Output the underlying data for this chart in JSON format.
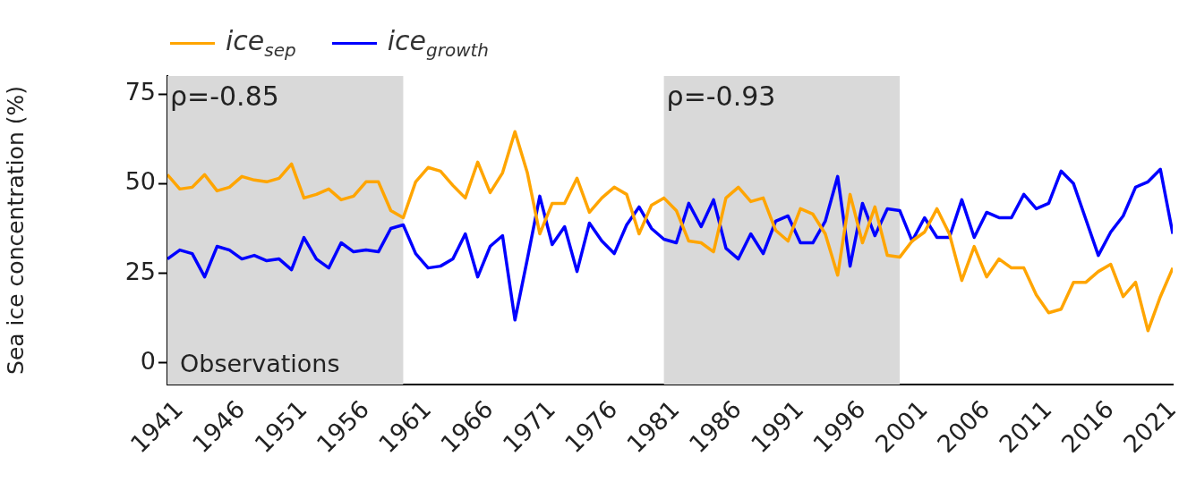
{
  "chart_data": {
    "type": "line",
    "ylabel": "Sea ice concentration (%)",
    "x": [
      1940,
      1941,
      1942,
      1943,
      1944,
      1945,
      1946,
      1947,
      1948,
      1949,
      1950,
      1951,
      1952,
      1953,
      1954,
      1955,
      1956,
      1957,
      1958,
      1959,
      1960,
      1961,
      1962,
      1963,
      1964,
      1965,
      1966,
      1967,
      1968,
      1969,
      1970,
      1971,
      1972,
      1973,
      1974,
      1975,
      1976,
      1977,
      1978,
      1979,
      1980,
      1981,
      1982,
      1983,
      1984,
      1985,
      1986,
      1987,
      1988,
      1989,
      1990,
      1991,
      1992,
      1993,
      1994,
      1995,
      1996,
      1997,
      1998,
      1999,
      2000,
      2001,
      2002,
      2003,
      2004,
      2005,
      2006,
      2007,
      2008,
      2009,
      2010,
      2011,
      2012,
      2013,
      2014,
      2015,
      2016,
      2017,
      2018,
      2019,
      2020,
      2021
    ],
    "series": [
      {
        "name": "ice$_{sep}$",
        "color": "#ffa500",
        "values": [
          52.5,
          48.5,
          49,
          52.5,
          48,
          49,
          52,
          51,
          50.5,
          51.5,
          55.5,
          46,
          47,
          48.5,
          45.5,
          46.5,
          50.5,
          50.5,
          42.5,
          40.5,
          50.5,
          54.5,
          53.5,
          49.5,
          46,
          56,
          47.5,
          53,
          64.5,
          53,
          36,
          44.5,
          44.5,
          51.5,
          42,
          46,
          49,
          47,
          36,
          44,
          46,
          42.5,
          34,
          33.5,
          31,
          46,
          49,
          45,
          46,
          37,
          34,
          43,
          41.5,
          36,
          24.5,
          47,
          33.5,
          43.5,
          30,
          29.5,
          34,
          36.5,
          43,
          36,
          23,
          32.5,
          24,
          29,
          26.5,
          26.5,
          19,
          14,
          15,
          22.5,
          22.5,
          25.5,
          27.5,
          18.5,
          22.5,
          9,
          18.5,
          26.5
        ]
      },
      {
        "name": "ice$_{growth}$",
        "color": "#0000ff",
        "values": [
          29,
          31.5,
          30.5,
          24,
          32.5,
          31.5,
          29,
          30,
          28.5,
          29,
          26,
          35,
          29,
          26.5,
          33.5,
          31,
          31.5,
          31,
          37.5,
          38.5,
          30.5,
          26.5,
          27,
          29,
          36,
          24,
          32.5,
          35.5,
          12,
          29,
          46.5,
          33,
          38,
          25.5,
          39,
          34,
          30.5,
          38.5,
          43.5,
          37.5,
          34.5,
          33.5,
          44.5,
          38,
          45.5,
          32,
          29,
          36,
          30.5,
          39.5,
          41,
          33.5,
          33.5,
          39.5,
          52,
          27,
          44.5,
          35.5,
          43,
          42.5,
          34,
          40.5,
          35,
          35,
          45.5,
          35,
          42,
          40.5,
          40.5,
          47,
          43,
          44.5,
          53.5,
          50,
          40,
          30,
          36.5,
          41,
          49,
          50.5,
          54,
          36
        ]
      }
    ],
    "xlim": [
      1940,
      2021
    ],
    "xticks": [
      1941,
      1946,
      1951,
      1956,
      1961,
      1966,
      1971,
      1976,
      1981,
      1986,
      1991,
      1996,
      2001,
      2006,
      2011,
      2016,
      2021
    ],
    "ylim": [
      -6,
      80
    ],
    "yticks": [
      0,
      25,
      50,
      75
    ],
    "bands": [
      {
        "axis": "x",
        "from": 1940,
        "to": 1959,
        "label": "ρ=-0.85",
        "color": "#d9d9d9"
      },
      {
        "axis": "x",
        "from": 1980,
        "to": 1999,
        "label": "ρ=-0.93",
        "color": "#d9d9d9"
      }
    ],
    "annotations": [
      "Observations"
    ],
    "legend": "top left",
    "grid": false,
    "marker": "none",
    "line_style": "solid"
  }
}
